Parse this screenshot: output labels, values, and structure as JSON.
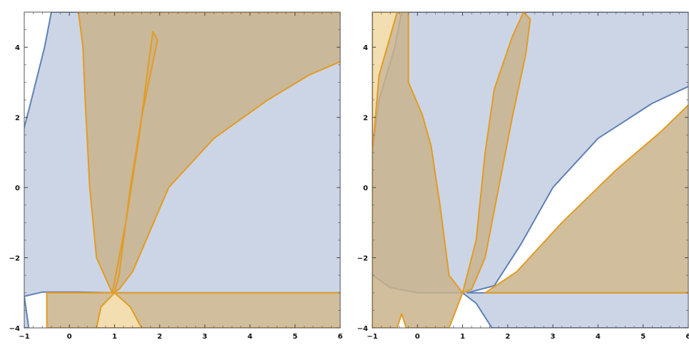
{
  "chart_data": [
    {
      "type": "region-plot",
      "xlim": [
        -1,
        6
      ],
      "ylim": [
        -4,
        5
      ],
      "xticks": [
        "−1",
        "0",
        "1",
        "2",
        "3",
        "4",
        "5",
        "6"
      ],
      "yticks": [
        "−4",
        "−2",
        "0",
        "2",
        "4"
      ],
      "grid": false,
      "series": [
        {
          "color": "#5e81b5",
          "fill": "#ccd5e6",
          "regions": [
            [
              [
                -1.15,
                -4
              ],
              [
                -1.15,
                1.0
              ],
              [
                -0.9,
                2.2
              ],
              [
                -0.55,
                4.0
              ],
              [
                -0.4,
                5.0
              ],
              [
                6.2,
                5.0
              ],
              [
                6.2,
                -3.0
              ],
              [
                1.5,
                -3.0
              ],
              [
                1.1,
                -3.0
              ],
              [
                0.2,
                -2.98
              ],
              [
                -0.6,
                -2.98
              ],
              [
                -1.0,
                -3.1
              ],
              [
                -0.9,
                -4.0
              ]
            ]
          ]
        },
        {
          "color": "#e19c24",
          "fill": "#c9b38c",
          "regions": [
            [
              [
                0.2,
                5.0
              ],
              [
                6.2,
                5.0
              ],
              [
                6.2,
                3.7
              ],
              [
                5.3,
                3.2
              ],
              [
                4.4,
                2.5
              ],
              [
                3.2,
                1.4
              ],
              [
                2.2,
                0.0
              ],
              [
                1.8,
                -1.2
              ],
              [
                1.4,
                -2.4
              ],
              [
                1.1,
                -2.9
              ],
              [
                0.95,
                -3.0
              ],
              [
                0.6,
                -2.0
              ],
              [
                0.45,
                0.0
              ],
              [
                0.35,
                2.5
              ],
              [
                0.3,
                4.0
              ]
            ],
            [
              [
                0.6,
                -3.0
              ],
              [
                0.95,
                -3.0
              ],
              [
                1.25,
                -1.0
              ],
              [
                1.55,
                1.5
              ],
              [
                1.75,
                3.5
              ],
              [
                1.85,
                4.45
              ],
              [
                1.95,
                4.2
              ],
              [
                1.6,
                2.0
              ],
              [
                1.35,
                0.0
              ],
              [
                1.1,
                -2.5
              ],
              [
                1.0,
                -3.0
              ]
            ],
            [
              [
                -0.5,
                -3.0
              ],
              [
                6.2,
                -3.0
              ],
              [
                6.2,
                -4.0
              ],
              [
                -0.5,
                -4.0
              ]
            ]
          ]
        }
      ],
      "highlight_region": {
        "fill": "#f3deb1",
        "points": [
          [
            0.6,
            -4
          ],
          [
            0.7,
            -3.4
          ],
          [
            1.0,
            -3.0
          ],
          [
            1.35,
            -3.4
          ],
          [
            1.6,
            -4
          ]
        ]
      }
    },
    {
      "type": "region-plot",
      "xlim": [
        -1,
        6
      ],
      "ylim": [
        -4,
        5
      ],
      "xticks": [
        "−1",
        "0",
        "1",
        "2",
        "3",
        "4",
        "5",
        "6"
      ],
      "yticks": [
        "−4",
        "−2",
        "0",
        "2",
        "4"
      ],
      "grid": false,
      "series": [
        {
          "color": "#5e81b5",
          "fill": "#ccd5e6",
          "regions": [
            [
              [
                -1.0,
                1.0
              ],
              [
                -0.85,
                2.5
              ],
              [
                -0.5,
                4.0
              ],
              [
                -0.35,
                5.0
              ],
              [
                6.2,
                5.0
              ],
              [
                6.2,
                3.0
              ],
              [
                5.2,
                2.4
              ],
              [
                4.0,
                1.4
              ],
              [
                3.0,
                0.0
              ],
              [
                2.3,
                -1.6
              ],
              [
                1.7,
                -2.8
              ],
              [
                1.1,
                -3.0
              ],
              [
                6.2,
                -3.0
              ],
              [
                6.2,
                -4.0
              ],
              [
                1.65,
                -4.0
              ],
              [
                1.3,
                -3.3
              ],
              [
                1.0,
                -3.0
              ],
              [
                0.0,
                -3.0
              ],
              [
                -0.6,
                -2.85
              ],
              [
                -1.0,
                -2.5
              ]
            ]
          ]
        },
        {
          "color": "#e19c24",
          "fill": "#c9b38c",
          "regions": [
            [
              [
                -1.0,
                -4
              ],
              [
                -1.0,
                5.0
              ],
              [
                -0.2,
                5.0
              ],
              [
                -0.2,
                3.0
              ],
              [
                0.1,
                2.1
              ],
              [
                0.3,
                1.2
              ],
              [
                0.5,
                -0.5
              ],
              [
                0.7,
                -2.5
              ],
              [
                1.0,
                -3.0
              ],
              [
                0.7,
                -4
              ],
              [
                -0.25,
                -4
              ],
              [
                -0.35,
                -3.6
              ],
              [
                -0.45,
                -4.0
              ]
            ],
            [
              [
                1.0,
                -3.0
              ],
              [
                1.3,
                -1.5
              ],
              [
                1.5,
                1.0
              ],
              [
                1.7,
                2.8
              ],
              [
                2.1,
                4.3
              ],
              [
                2.35,
                5.0
              ],
              [
                2.5,
                4.8
              ],
              [
                2.4,
                3.8
              ],
              [
                2.1,
                2.0
              ],
              [
                1.8,
                0.0
              ],
              [
                1.5,
                -2.0
              ],
              [
                1.2,
                -2.9
              ]
            ],
            [
              [
                1.5,
                -3.0
              ],
              [
                2.2,
                -2.4
              ],
              [
                3.2,
                -1.0
              ],
              [
                4.4,
                0.5
              ],
              [
                5.4,
                1.6
              ],
              [
                6.2,
                2.6
              ],
              [
                6.2,
                -3.0
              ]
            ]
          ]
        }
      ],
      "highlight_region": {
        "fill": "#f3deb1",
        "points": [
          [
            -1.0,
            -4
          ],
          [
            -1.0,
            5.0
          ],
          [
            -0.45,
            5.0
          ],
          [
            -0.85,
            3.2
          ],
          [
            -1.0,
            1.0
          ]
        ]
      }
    }
  ]
}
